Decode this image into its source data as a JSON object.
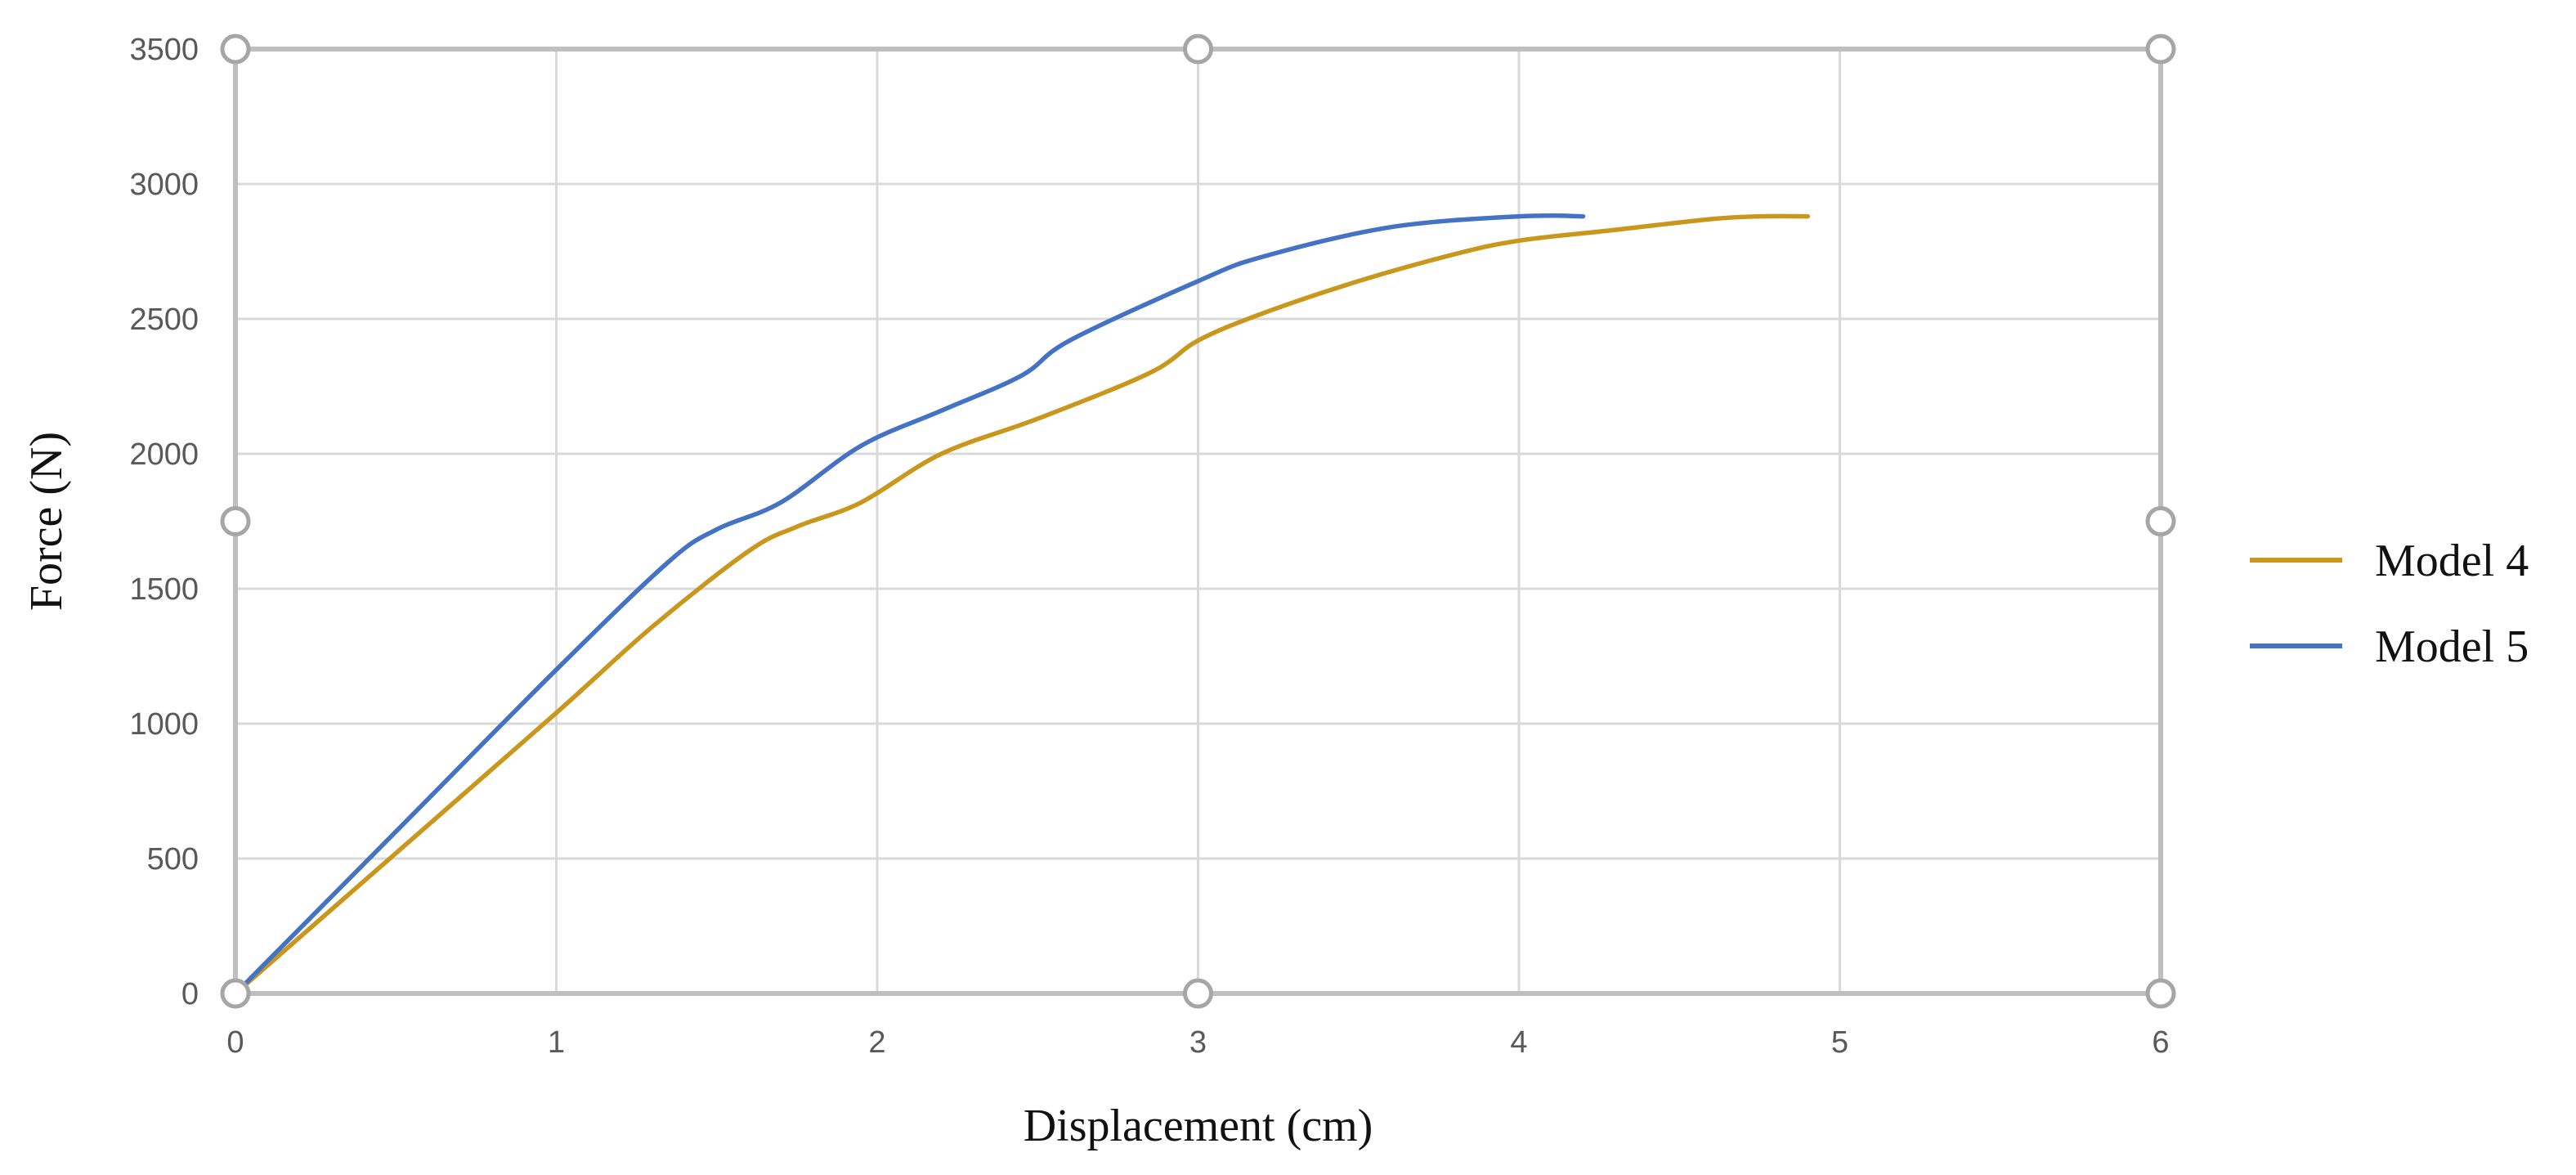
{
  "chart_data": {
    "type": "line",
    "title": "",
    "xlabel": "Displacement (cm)",
    "ylabel": "Force (N)",
    "xlim": [
      0,
      6
    ],
    "ylim": [
      0,
      3500
    ],
    "x_ticks": [
      "0",
      "1",
      "2",
      "3",
      "4",
      "5",
      "6"
    ],
    "y_ticks": [
      "0",
      "500",
      "1000",
      "1500",
      "2000",
      "2500",
      "3000",
      "3500"
    ],
    "grid": true,
    "legend_position": "right",
    "series": [
      {
        "name": "Model 4",
        "color": "#C9971C",
        "x": [
          0,
          0.5,
          1.0,
          1.3,
          1.6,
          1.75,
          1.95,
          2.2,
          2.5,
          2.85,
          3.0,
          3.2,
          3.5,
          3.8,
          4.0,
          4.3,
          4.6,
          4.75,
          4.9
        ],
        "y": [
          0,
          520,
          1040,
          1360,
          1640,
          1730,
          1820,
          2000,
          2130,
          2300,
          2420,
          2520,
          2640,
          2740,
          2790,
          2830,
          2870,
          2880,
          2880
        ]
      },
      {
        "name": "Model 5",
        "color": "#4472C4",
        "x": [
          0,
          0.5,
          1.0,
          1.35,
          1.5,
          1.7,
          1.95,
          2.2,
          2.45,
          2.6,
          3.0,
          3.2,
          3.6,
          4.0,
          4.2
        ],
        "y": [
          0,
          600,
          1200,
          1600,
          1720,
          1820,
          2030,
          2160,
          2290,
          2420,
          2640,
          2730,
          2840,
          2880,
          2880
        ]
      }
    ]
  }
}
